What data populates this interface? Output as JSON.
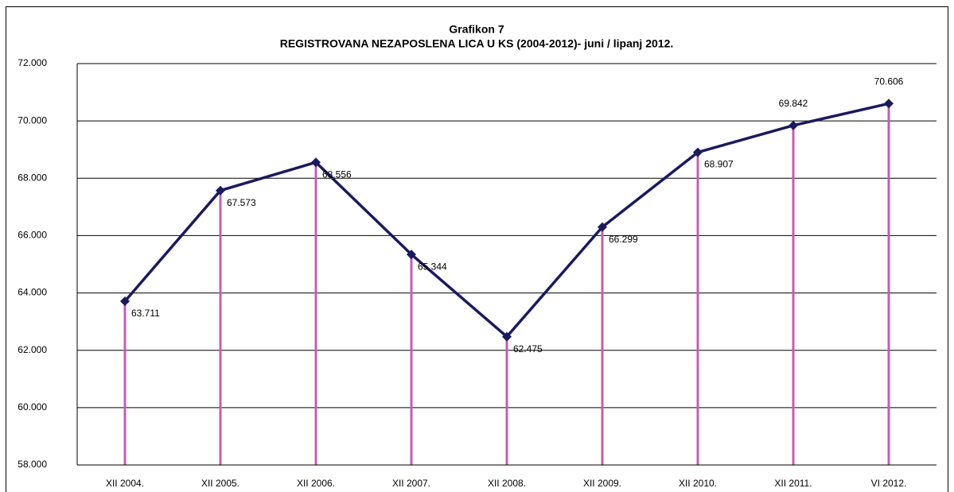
{
  "chart_data": {
    "type": "line",
    "title": "Grafikon 7",
    "subtitle": "REGISTROVANA NEZAPOSLENA LICA U KS  (2004-2012)- juni / lipanj 2012.",
    "categories": [
      "XII 2004.",
      "XII 2005.",
      "XII 2006.",
      "XII 2007.",
      "XII 2008.",
      "XII  2009.",
      "XII 2010.",
      "XII 2011.",
      "VI 2012."
    ],
    "series": [
      {
        "name": "Registrovana nezaposlena lica",
        "color": "#1a1a5e",
        "drop_line_color": "#c060b0",
        "values": [
          63711,
          67573,
          68556,
          65344,
          62475,
          66299,
          68907,
          69842,
          70606
        ],
        "value_labels": [
          "63.711",
          "67.573",
          "68.556",
          "65.344",
          "62.475",
          "66.299",
          "68.907",
          "69.842",
          "70.606"
        ]
      }
    ],
    "ylim": [
      58000,
      72000
    ],
    "yticks": [
      {
        "value": 58000,
        "label": "58.000"
      },
      {
        "value": 60000,
        "label": "60.000"
      },
      {
        "value": 62000,
        "label": "62.000"
      },
      {
        "value": 64000,
        "label": "64.000"
      },
      {
        "value": 66000,
        "label": "66.000"
      },
      {
        "value": 68000,
        "label": "68.000"
      },
      {
        "value": 70000,
        "label": "70.000"
      },
      {
        "value": 72000,
        "label": "72.000"
      }
    ],
    "grid": true
  }
}
